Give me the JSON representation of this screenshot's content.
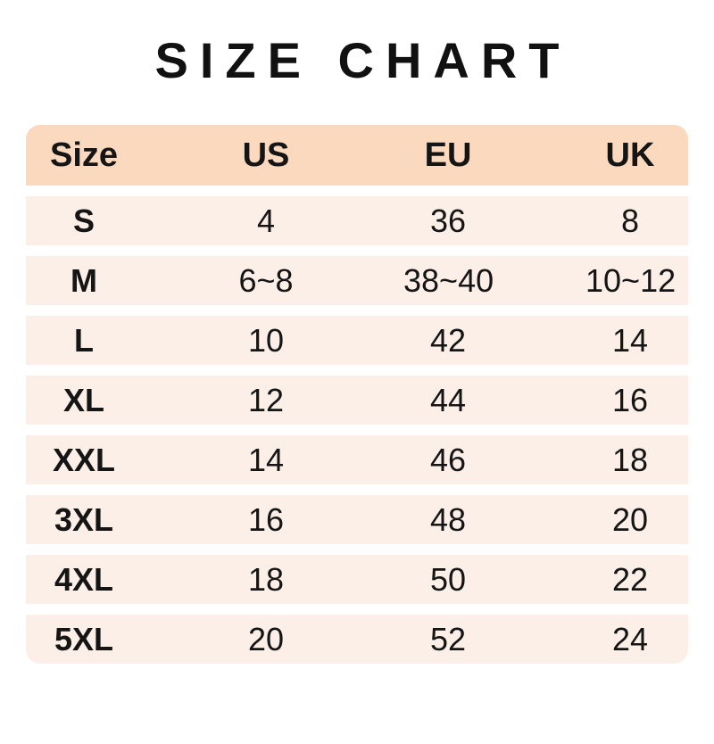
{
  "title": "SIZE CHART",
  "colors": {
    "header_bg": "#FBD9BE",
    "row_bg": "#FCEFE7",
    "text": "#151515",
    "title": "#111111",
    "page_bg": "#FFFFFF"
  },
  "table": {
    "headers": [
      "Size",
      "US",
      "EU",
      "UK"
    ],
    "rows": [
      {
        "size": "S",
        "us": "4",
        "eu": "36",
        "uk": "8"
      },
      {
        "size": "M",
        "us": "6~8",
        "eu": "38~40",
        "uk": "10~12"
      },
      {
        "size": "L",
        "us": "10",
        "eu": "42",
        "uk": "14"
      },
      {
        "size": "XL",
        "us": "12",
        "eu": "44",
        "uk": "16"
      },
      {
        "size": "XXL",
        "us": "14",
        "eu": "46",
        "uk": "18"
      },
      {
        "size": "3XL",
        "us": "16",
        "eu": "48",
        "uk": "20"
      },
      {
        "size": "4XL",
        "us": "18",
        "eu": "50",
        "uk": "22"
      },
      {
        "size": "5XL",
        "us": "20",
        "eu": "52",
        "uk": "24"
      }
    ]
  },
  "chart_data": {
    "type": "table",
    "title": "SIZE CHART",
    "columns": [
      "Size",
      "US",
      "EU",
      "UK"
    ],
    "rows": [
      [
        "S",
        "4",
        "36",
        "8"
      ],
      [
        "M",
        "6~8",
        "38~40",
        "10~12"
      ],
      [
        "L",
        "10",
        "42",
        "14"
      ],
      [
        "XL",
        "12",
        "44",
        "16"
      ],
      [
        "XXL",
        "14",
        "46",
        "18"
      ],
      [
        "3XL",
        "16",
        "48",
        "20"
      ],
      [
        "4XL",
        "18",
        "50",
        "22"
      ],
      [
        "5XL",
        "20",
        "52",
        "24"
      ]
    ],
    "layout": {
      "header_background": "#FBD9BE",
      "row_background": "#FCEFE7",
      "row_separator": "white gaps",
      "corner_rounding": "top of header row and bottom of last row"
    }
  }
}
